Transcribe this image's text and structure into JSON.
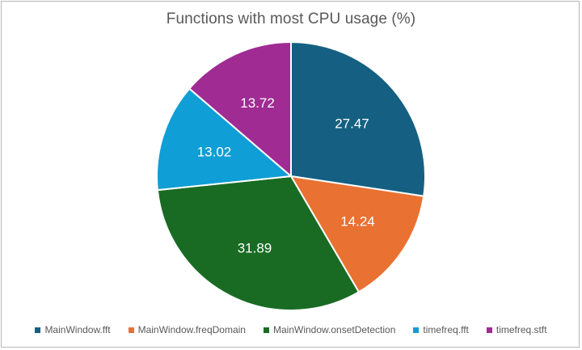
{
  "chart_data": {
    "type": "pie",
    "title": "Functions with most CPU usage (%)",
    "categories": [
      "MainWindow.fft",
      "MainWindow.freqDomain",
      "MainWindow.onsetDetection",
      "timefreq.fft",
      "timefreq.stft"
    ],
    "values": [
      27.47,
      14.24,
      31.89,
      13.02,
      13.72
    ],
    "value_labels": [
      "27.47",
      "14.24",
      "31.89",
      "13.02",
      "13.72"
    ],
    "colors": [
      "#156082",
      "#E97132",
      "#196B24",
      "#0F9ED5",
      "#A02B93"
    ],
    "legend_position": "bottom",
    "start_angle": "12 o'clock, clockwise"
  }
}
